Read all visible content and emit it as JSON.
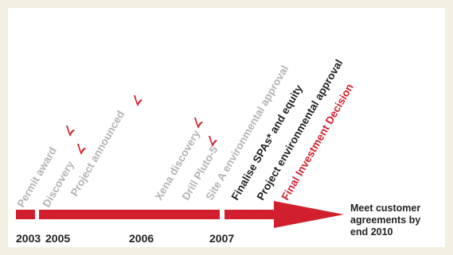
{
  "colors": {
    "background": "#f3efe2",
    "panel": "#ffffff",
    "accent": "#d21f2e",
    "past": "#b3b3b3",
    "current": "#222222",
    "text": "#222222"
  },
  "timeline": {
    "years": [
      "2003",
      "2005",
      "2006",
      "2007"
    ],
    "end_note": [
      "Meet customer",
      "agreements by",
      "end 2010"
    ]
  },
  "milestones": [
    {
      "label": "Permit award",
      "status": "past",
      "tick": false
    },
    {
      "label": "Discovery",
      "status": "past",
      "tick": true
    },
    {
      "label": "Project announced",
      "status": "past",
      "tick": true
    },
    {
      "label": "Xena discovery",
      "status": "past",
      "tick": true
    },
    {
      "label": "Drill Pluto-5",
      "status": "past",
      "tick": true
    },
    {
      "label": "Site A environmental approval",
      "status": "past",
      "tick": true
    },
    {
      "label": "Finalise SPAs* and equity",
      "status": "pending",
      "tick": false
    },
    {
      "label": "Project environmental approval",
      "status": "pending",
      "tick": false
    },
    {
      "label": "Final Investment Decision",
      "status": "highlight",
      "tick": false
    }
  ],
  "icons": {
    "tick": "check-mark-icon",
    "arrow": "timeline-arrow-icon"
  }
}
